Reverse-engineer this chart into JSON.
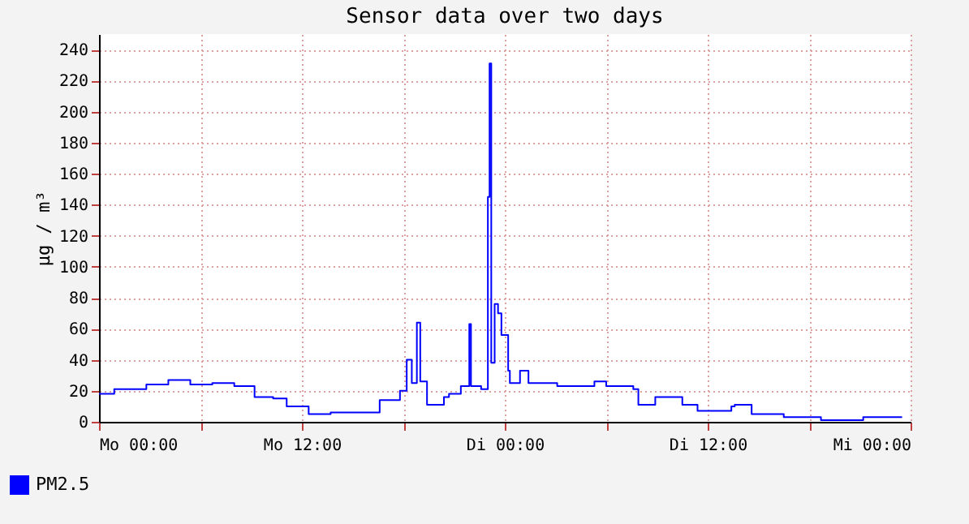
{
  "chart_data": {
    "type": "step",
    "title": "Sensor data over two days",
    "ylabel": "µg / m³",
    "x": [
      "--01-01T00:00",
      "--01-01T00:54",
      "--01-01T02:48",
      "--01-01T04:06",
      "--01-01T05:24",
      "--01-01T06:42",
      "--01-01T08:00",
      "--01-01T09:12",
      "--01-01T10:18",
      "--01-01T11:06",
      "--01-01T12:24",
      "--01-01T13:42",
      "--01-01T15:36",
      "--01-01T16:36",
      "--01-01T17:48",
      "--01-01T18:12",
      "--01-01T18:30",
      "--01-01T18:48",
      "--01-01T19:00",
      "--01-01T19:24",
      "--01-01T20:24",
      "--01-01T20:42",
      "--01-01T21:24",
      "--01-01T21:54",
      "--01-01T22:00",
      "--01-01T22:36",
      "--01-01T23:00",
      "--01-01T23:06",
      "--01-01T23:12",
      "--01-01T23:24",
      "--01-01T23:36",
      "--01-01T23:48",
      "--01-02T00:12",
      "--01-02T00:18",
      "--01-02T00:54",
      "--01-02T01:24",
      "--01-02T03:06",
      "--01-02T05:18",
      "--01-02T06:00",
      "--01-02T07:36",
      "--01-02T07:54",
      "--01-02T08:54",
      "--01-02T10:30",
      "--01-02T11:24",
      "--01-02T13:24",
      "--01-02T13:36",
      "--01-02T14:36",
      "--01-02T16:30",
      "--01-02T18:42",
      "--01-02T21:12",
      "--01-02T23:30"
    ],
    "series": [
      {
        "name": "PM2.5",
        "color": "#0000ff",
        "values": [
          18,
          21,
          24,
          27,
          24,
          25,
          23,
          16,
          15,
          10,
          5,
          6,
          6,
          14,
          20,
          40,
          25,
          64,
          26,
          11,
          16,
          18,
          23,
          63,
          23,
          21,
          145,
          231,
          38,
          76,
          70,
          56,
          33,
          25,
          33,
          25,
          23,
          26,
          23,
          21,
          11,
          16,
          11,
          7,
          10,
          11,
          5,
          3,
          1,
          3,
          3
        ]
      }
    ],
    "xlim": [
      "--01-01T00:00",
      "--01-03T00:00"
    ],
    "xticks": [
      {
        "value": "--01-01T00:00",
        "label": "Mo 00:00"
      },
      {
        "value": "--01-01T06:00",
        "label": null
      },
      {
        "value": "--01-01T12:00",
        "label": "Mo 12:00"
      },
      {
        "value": "--01-01T18:00",
        "label": null
      },
      {
        "value": "--01-02T00:00",
        "label": "Di 00:00"
      },
      {
        "value": "--01-02T06:00",
        "label": null
      },
      {
        "value": "--01-02T12:00",
        "label": "Di 12:00"
      },
      {
        "value": "--01-02T18:00",
        "label": null
      },
      {
        "value": "--01-03T00:00",
        "label": "Mi 00:00"
      }
    ],
    "ylim": [
      0,
      250
    ],
    "yticks": [
      0,
      20,
      40,
      60,
      80,
      100,
      120,
      140,
      160,
      180,
      200,
      220,
      240
    ],
    "grid": true,
    "legend": "bottom left"
  }
}
